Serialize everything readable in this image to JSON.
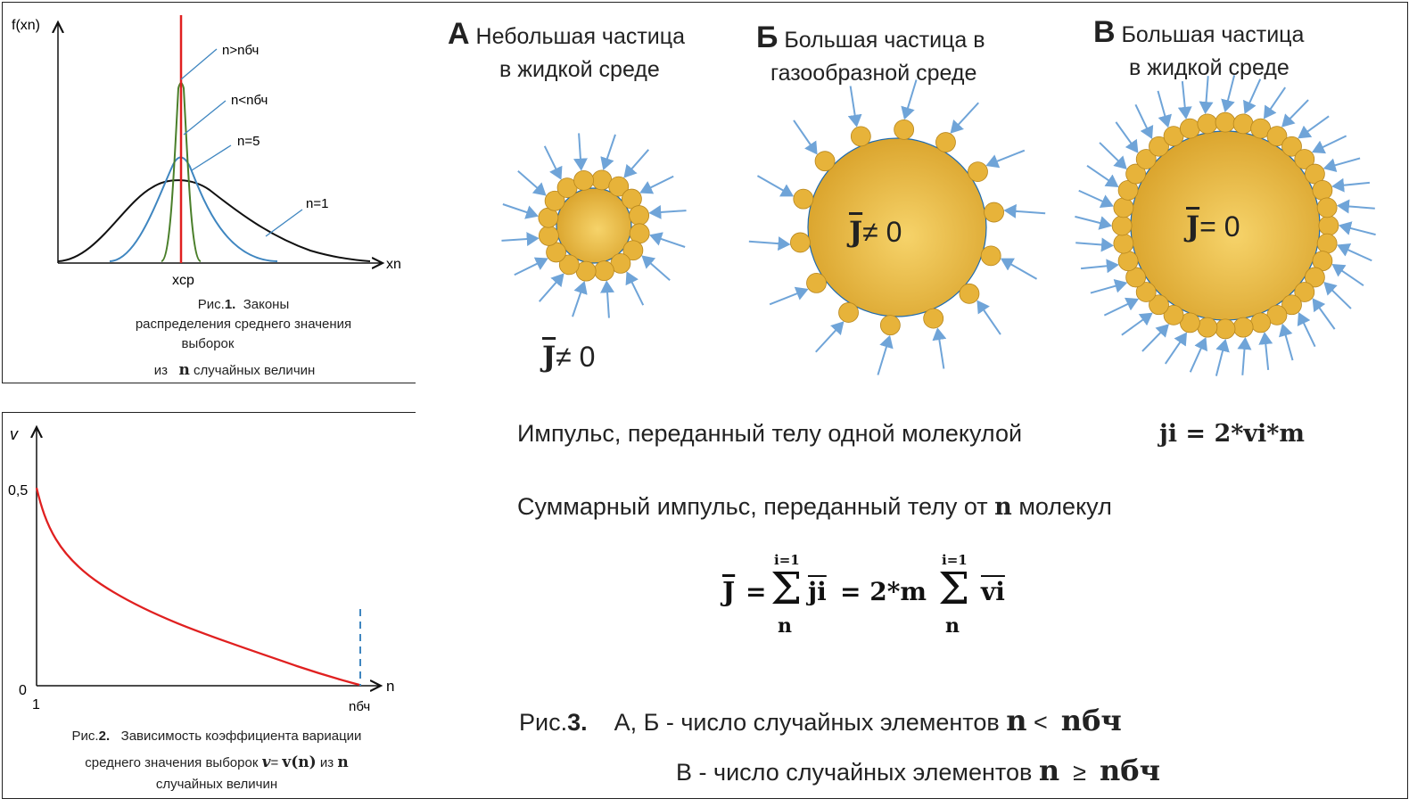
{
  "fig1": {
    "y_axis": "f(xn)",
    "x_axis": "xn",
    "x_mark": "xcp",
    "curves": [
      {
        "label": "n>nбч",
        "color": "#e02020"
      },
      {
        "label": "n<nбч",
        "color": "#4a7f2a"
      },
      {
        "label": "n=5",
        "color": "#3f86c0"
      },
      {
        "label": "n=1",
        "color": "#111111"
      }
    ],
    "caption": {
      "prefix": "Рис.",
      "num": "1.",
      "line1": "Законы",
      "line2": "распределения среднего значения",
      "line3": "выборок",
      "line4a": "из",
      "line4b": "n",
      "line4c": "случайных величин"
    }
  },
  "fig2": {
    "y_axis": "v",
    "y_ticks": [
      "0,5",
      "0"
    ],
    "x_axis": "n",
    "x_ticks": [
      "1",
      "nбч"
    ],
    "curve_color": "#e02020",
    "caption": {
      "prefix": "Рис.",
      "num": "2.",
      "line1": "Зависимость коэффициента вариации",
      "line2a": "среднего значения выборок",
      "line2b": "v",
      "line2c": "=",
      "line2d": "v(n)",
      "line2e": "из",
      "line2f": "n",
      "line3": "случайных величин"
    }
  },
  "fig3": {
    "colors": {
      "particle": "#e7b33a",
      "arrow": "#6fa4d8"
    },
    "A": {
      "letter": "А",
      "line1": "Небольшая частица",
      "line2": "в жидкой среде",
      "formula_j": "J",
      "formula_rest": "≠ 0"
    },
    "B": {
      "letter": "Б",
      "line1": "Большая частица в",
      "line2": "газообразной среде",
      "formula_j": "J",
      "formula_rest": "≠ 0"
    },
    "V": {
      "letter": "В",
      "line1": "Большая частица",
      "line2": "в жидкой среде",
      "formula_j": "J",
      "formula_rest": "= 0"
    },
    "impulse1_text": "Импульс, переданный телу одной молекулой",
    "impulse1_formula": "ji = 2*vi*m",
    "impulse2_a": "Суммарный импульс, переданный телу от",
    "impulse2_b": "n",
    "impulse2_c": "молекул",
    "sum_formula": {
      "lhs": "J",
      "eq1": "=",
      "top1": "i=1",
      "bottom1": "n",
      "term1": "ji",
      "eq2": "= 2*m",
      "top2": "i=1",
      "bottom2": "n",
      "term2": "vi"
    },
    "caption": {
      "prefix": "Рис.",
      "num": "3.",
      "line1_a": "А, Б - число случайных элементов",
      "line1_b": "n",
      "line1_c": "<",
      "line1_d": "nбч",
      "line2_a": "В - число случайных элементов",
      "line2_b": "n",
      "line2_c": "≥",
      "line2_d": "nбч"
    }
  }
}
